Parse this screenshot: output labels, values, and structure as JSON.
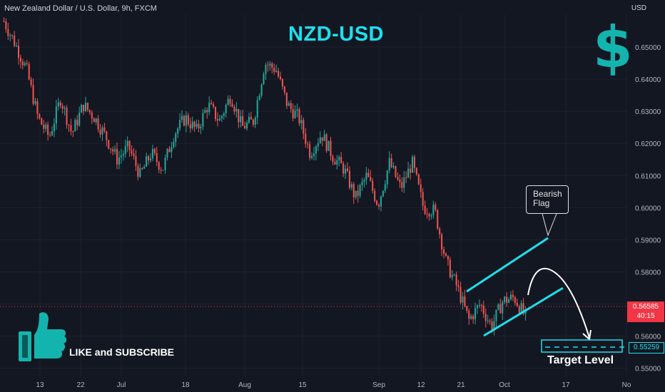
{
  "header": {
    "symbol_text": "New Zealand Dollar / U.S. Dollar, 9h, FXCM",
    "currency_label": "USD"
  },
  "annotations": {
    "title": "NZD-USD",
    "dollar_sign": "$",
    "flag_label_line1": "Bearish",
    "flag_label_line2": "Flag",
    "like_text": "LIKE and SUBSCRIBE",
    "target_text": "Target Level",
    "thumbs_up_icon": "thumbs-up-icon"
  },
  "price_axis": {
    "current_price": "0.56585",
    "countdown": "40:15",
    "target_price": "0.55259"
  },
  "colors": {
    "up": "#26a69a",
    "down": "#ef5350",
    "accent": "#1de0ee",
    "background": "#131722"
  },
  "chart_data": {
    "type": "candlestick",
    "title": "NZD-USD",
    "ylabel": "USD",
    "ylim": [
      0.5475,
      0.6602
    ],
    "yticks": [
      0.55,
      0.56,
      0.57,
      0.58,
      0.59,
      0.6,
      0.61,
      0.62,
      0.63,
      0.64,
      0.65
    ],
    "xticks": [
      "13",
      "22",
      "Jul",
      "18",
      "Aug",
      "15",
      "Sep",
      "12",
      "21",
      "Oct",
      "17",
      "No"
    ],
    "path": [
      0.658,
      0.651,
      0.643,
      0.628,
      0.622,
      0.634,
      0.623,
      0.632,
      0.628,
      0.622,
      0.615,
      0.619,
      0.61,
      0.617,
      0.612,
      0.623,
      0.628,
      0.624,
      0.632,
      0.627,
      0.635,
      0.625,
      0.627,
      0.645,
      0.643,
      0.632,
      0.628,
      0.617,
      0.623,
      0.616,
      0.612,
      0.603,
      0.61,
      0.601,
      0.614,
      0.606,
      0.614,
      0.6,
      0.599,
      0.583,
      0.575,
      0.565,
      0.57,
      0.563,
      0.571,
      0.572,
      0.566
    ],
    "current_price": 0.56585,
    "target_price": 0.55259,
    "pattern": "Bearish Flag"
  }
}
